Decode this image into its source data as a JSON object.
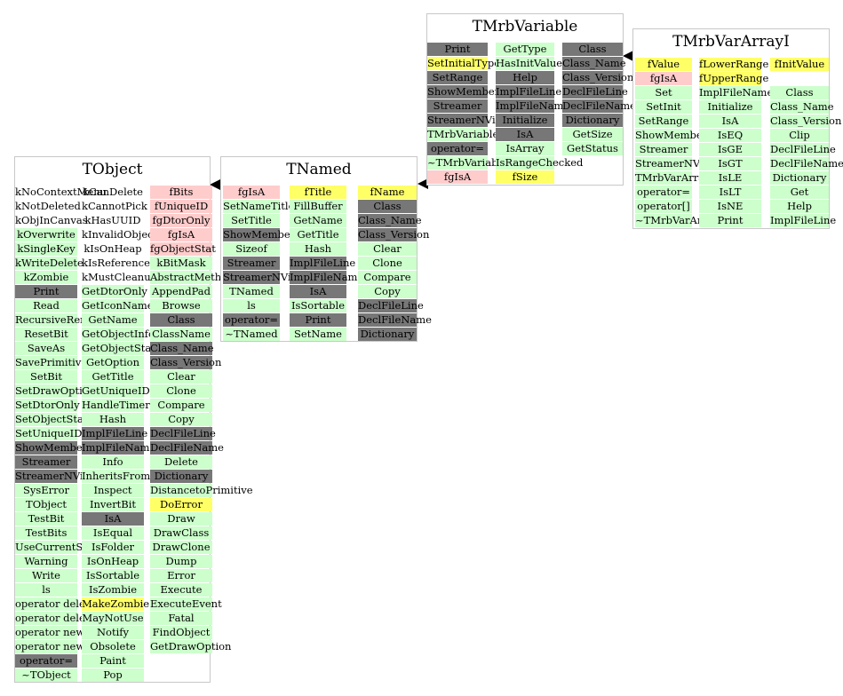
{
  "colors": {
    "green": "#ccffcc",
    "gray": "#777777",
    "pink": "#ffcccc",
    "yellow": "#ffff66"
  },
  "classes": {
    "TObject": {
      "title": "TObject",
      "columns": [
        [
          {
            "t": "kNoContextMenu",
            "c": "w"
          },
          {
            "t": "kNotDeleted",
            "c": "w"
          },
          {
            "t": "kObjInCanvas",
            "c": "w"
          },
          {
            "t": "kOverwrite",
            "c": "g"
          },
          {
            "t": "kSingleKey",
            "c": "g"
          },
          {
            "t": "kWriteDelete",
            "c": "g"
          },
          {
            "t": "kZombie",
            "c": "g"
          },
          {
            "t": "Print",
            "c": "d"
          },
          {
            "t": "Read",
            "c": "g"
          },
          {
            "t": "RecursiveRemove",
            "c": "g"
          },
          {
            "t": "ResetBit",
            "c": "g"
          },
          {
            "t": "SaveAs",
            "c": "g"
          },
          {
            "t": "SavePrimitive",
            "c": "g"
          },
          {
            "t": "SetBit",
            "c": "g"
          },
          {
            "t": "SetDrawOption",
            "c": "g"
          },
          {
            "t": "SetDtorOnly",
            "c": "g"
          },
          {
            "t": "SetObjectStat",
            "c": "g"
          },
          {
            "t": "SetUniqueID",
            "c": "g"
          },
          {
            "t": "ShowMembers",
            "c": "d"
          },
          {
            "t": "Streamer",
            "c": "d"
          },
          {
            "t": "StreamerNVirtual",
            "c": "d"
          },
          {
            "t": "SysError",
            "c": "g"
          },
          {
            "t": "TObject",
            "c": "g"
          },
          {
            "t": "TestBit",
            "c": "g"
          },
          {
            "t": "TestBits",
            "c": "g"
          },
          {
            "t": "UseCurrentStyle",
            "c": "g"
          },
          {
            "t": "Warning",
            "c": "g"
          },
          {
            "t": "Write",
            "c": "g"
          },
          {
            "t": "ls",
            "c": "g"
          },
          {
            "t": "operator delete",
            "c": "g"
          },
          {
            "t": "operator delete[]",
            "c": "g"
          },
          {
            "t": "operator new",
            "c": "g"
          },
          {
            "t": "operator new[]",
            "c": "g"
          },
          {
            "t": "operator=",
            "c": "d"
          },
          {
            "t": "~TObject",
            "c": "g"
          }
        ],
        [
          {
            "t": "kCanDelete",
            "c": "w"
          },
          {
            "t": "kCannotPick",
            "c": "w"
          },
          {
            "t": "kHasUUID",
            "c": "w"
          },
          {
            "t": "kInvalidObject",
            "c": "w"
          },
          {
            "t": "kIsOnHeap",
            "c": "w"
          },
          {
            "t": "kIsReferenced",
            "c": "w"
          },
          {
            "t": "kMustCleanup",
            "c": "w"
          },
          {
            "t": "GetDtorOnly",
            "c": "g"
          },
          {
            "t": "GetIconName",
            "c": "g"
          },
          {
            "t": "GetName",
            "c": "g"
          },
          {
            "t": "GetObjectInfo",
            "c": "g"
          },
          {
            "t": "GetObjectStat",
            "c": "g"
          },
          {
            "t": "GetOption",
            "c": "g"
          },
          {
            "t": "GetTitle",
            "c": "g"
          },
          {
            "t": "GetUniqueID",
            "c": "g"
          },
          {
            "t": "HandleTimer",
            "c": "g"
          },
          {
            "t": "Hash",
            "c": "g"
          },
          {
            "t": "ImplFileLine",
            "c": "d"
          },
          {
            "t": "ImplFileName",
            "c": "d"
          },
          {
            "t": "Info",
            "c": "g"
          },
          {
            "t": "InheritsFrom",
            "c": "g"
          },
          {
            "t": "Inspect",
            "c": "g"
          },
          {
            "t": "InvertBit",
            "c": "g"
          },
          {
            "t": "IsA",
            "c": "d"
          },
          {
            "t": "IsEqual",
            "c": "g"
          },
          {
            "t": "IsFolder",
            "c": "g"
          },
          {
            "t": "IsOnHeap",
            "c": "g"
          },
          {
            "t": "IsSortable",
            "c": "g"
          },
          {
            "t": "IsZombie",
            "c": "g"
          },
          {
            "t": "MakeZombie",
            "c": "y"
          },
          {
            "t": "MayNotUse",
            "c": "g"
          },
          {
            "t": "Notify",
            "c": "g"
          },
          {
            "t": "Obsolete",
            "c": "g"
          },
          {
            "t": "Paint",
            "c": "g"
          },
          {
            "t": "Pop",
            "c": "g"
          }
        ],
        [
          {
            "t": "fBits",
            "c": "p"
          },
          {
            "t": "fUniqueID",
            "c": "p"
          },
          {
            "t": "fgDtorOnly",
            "c": "p"
          },
          {
            "t": "fgIsA",
            "c": "p"
          },
          {
            "t": "fgObjectStat",
            "c": "p"
          },
          {
            "t": "kBitMask",
            "c": "g"
          },
          {
            "t": "AbstractMethod",
            "c": "g"
          },
          {
            "t": "AppendPad",
            "c": "g"
          },
          {
            "t": "Browse",
            "c": "g"
          },
          {
            "t": "Class",
            "c": "d"
          },
          {
            "t": "ClassName",
            "c": "g"
          },
          {
            "t": "Class_Name",
            "c": "d"
          },
          {
            "t": "Class_Version",
            "c": "d"
          },
          {
            "t": "Clear",
            "c": "g"
          },
          {
            "t": "Clone",
            "c": "g"
          },
          {
            "t": "Compare",
            "c": "g"
          },
          {
            "t": "Copy",
            "c": "g"
          },
          {
            "t": "DeclFileLine",
            "c": "d"
          },
          {
            "t": "DeclFileName",
            "c": "d"
          },
          {
            "t": "Delete",
            "c": "g"
          },
          {
            "t": "Dictionary",
            "c": "d"
          },
          {
            "t": "DistancetoPrimitive",
            "c": "g"
          },
          {
            "t": "DoError",
            "c": "y"
          },
          {
            "t": "Draw",
            "c": "g"
          },
          {
            "t": "DrawClass",
            "c": "g"
          },
          {
            "t": "DrawClone",
            "c": "g"
          },
          {
            "t": "Dump",
            "c": "g"
          },
          {
            "t": "Error",
            "c": "g"
          },
          {
            "t": "Execute",
            "c": "g"
          },
          {
            "t": "ExecuteEvent",
            "c": "g"
          },
          {
            "t": "Fatal",
            "c": "g"
          },
          {
            "t": "FindObject",
            "c": "g"
          },
          {
            "t": "GetDrawOption",
            "c": "g"
          }
        ]
      ]
    },
    "TNamed": {
      "title": "TNamed",
      "columns": [
        [
          {
            "t": "fgIsA",
            "c": "p"
          },
          {
            "t": "SetNameTitle",
            "c": "g"
          },
          {
            "t": "SetTitle",
            "c": "g"
          },
          {
            "t": "ShowMembers",
            "c": "d"
          },
          {
            "t": "Sizeof",
            "c": "g"
          },
          {
            "t": "Streamer",
            "c": "d"
          },
          {
            "t": "StreamerNVirtual",
            "c": "d"
          },
          {
            "t": "TNamed",
            "c": "g"
          },
          {
            "t": "ls",
            "c": "g"
          },
          {
            "t": "operator=",
            "c": "d"
          },
          {
            "t": "~TNamed",
            "c": "g"
          }
        ],
        [
          {
            "t": "fTitle",
            "c": "y"
          },
          {
            "t": "FillBuffer",
            "c": "g"
          },
          {
            "t": "GetName",
            "c": "g"
          },
          {
            "t": "GetTitle",
            "c": "g"
          },
          {
            "t": "Hash",
            "c": "g"
          },
          {
            "t": "ImplFileLine",
            "c": "d"
          },
          {
            "t": "ImplFileName",
            "c": "d"
          },
          {
            "t": "IsA",
            "c": "d"
          },
          {
            "t": "IsSortable",
            "c": "g"
          },
          {
            "t": "Print",
            "c": "d"
          },
          {
            "t": "SetName",
            "c": "g"
          }
        ],
        [
          {
            "t": "fName",
            "c": "y"
          },
          {
            "t": "Class",
            "c": "d"
          },
          {
            "t": "Class_Name",
            "c": "d"
          },
          {
            "t": "Class_Version",
            "c": "d"
          },
          {
            "t": "Clear",
            "c": "g"
          },
          {
            "t": "Clone",
            "c": "g"
          },
          {
            "t": "Compare",
            "c": "g"
          },
          {
            "t": "Copy",
            "c": "g"
          },
          {
            "t": "DeclFileLine",
            "c": "d"
          },
          {
            "t": "DeclFileName",
            "c": "d"
          },
          {
            "t": "Dictionary",
            "c": "d"
          }
        ]
      ]
    },
    "TMrbVariable": {
      "title": "TMrbVariable",
      "columns": [
        [
          {
            "t": "Print",
            "c": "d"
          },
          {
            "t": "SetInitialType",
            "c": "y"
          },
          {
            "t": "SetRange",
            "c": "d"
          },
          {
            "t": "ShowMembers",
            "c": "d"
          },
          {
            "t": "Streamer",
            "c": "d"
          },
          {
            "t": "StreamerNVirtual",
            "c": "d"
          },
          {
            "t": "TMrbVariable",
            "c": "g"
          },
          {
            "t": "operator=",
            "c": "d"
          },
          {
            "t": "~TMrbVariable",
            "c": "g"
          },
          {
            "t": "fgIsA",
            "c": "p"
          }
        ],
        [
          {
            "t": "GetType",
            "c": "g"
          },
          {
            "t": "HasInitValues",
            "c": "g"
          },
          {
            "t": "Help",
            "c": "d"
          },
          {
            "t": "ImplFileLine",
            "c": "d"
          },
          {
            "t": "ImplFileName",
            "c": "d"
          },
          {
            "t": "Initialize",
            "c": "d"
          },
          {
            "t": "IsA",
            "c": "d"
          },
          {
            "t": "IsArray",
            "c": "g"
          },
          {
            "t": "IsRangeChecked",
            "c": "g"
          },
          {
            "t": "fSize",
            "c": "y"
          }
        ],
        [
          {
            "t": "Class",
            "c": "d"
          },
          {
            "t": "Class_Name",
            "c": "d"
          },
          {
            "t": "Class_Version",
            "c": "d"
          },
          {
            "t": "DeclFileLine",
            "c": "d"
          },
          {
            "t": "DeclFileName",
            "c": "d"
          },
          {
            "t": "Dictionary",
            "c": "d"
          },
          {
            "t": "GetSize",
            "c": "g"
          },
          {
            "t": "GetStatus",
            "c": "g"
          }
        ]
      ]
    },
    "TMrbVarArrayI": {
      "title": "TMrbVarArrayI",
      "columns": [
        [
          {
            "t": "fValue",
            "c": "y"
          },
          {
            "t": "fgIsA",
            "c": "p"
          },
          {
            "t": "Set",
            "c": "g"
          },
          {
            "t": "SetInit",
            "c": "g"
          },
          {
            "t": "SetRange",
            "c": "g"
          },
          {
            "t": "ShowMembers",
            "c": "g"
          },
          {
            "t": "Streamer",
            "c": "g"
          },
          {
            "t": "StreamerNVirtual",
            "c": "g"
          },
          {
            "t": "TMrbVarArrayI",
            "c": "g"
          },
          {
            "t": "operator=",
            "c": "g"
          },
          {
            "t": "operator[]",
            "c": "g"
          },
          {
            "t": "~TMrbVarArrayI",
            "c": "g"
          }
        ],
        [
          {
            "t": "fLowerRange",
            "c": "y"
          },
          {
            "t": "fUpperRange",
            "c": "y"
          },
          {
            "t": "ImplFileName",
            "c": "g"
          },
          {
            "t": "Initialize",
            "c": "g"
          },
          {
            "t": "IsA",
            "c": "g"
          },
          {
            "t": "IsEQ",
            "c": "g"
          },
          {
            "t": "IsGE",
            "c": "g"
          },
          {
            "t": "IsGT",
            "c": "g"
          },
          {
            "t": "IsLE",
            "c": "g"
          },
          {
            "t": "IsLT",
            "c": "g"
          },
          {
            "t": "IsNE",
            "c": "g"
          },
          {
            "t": "Print",
            "c": "g"
          }
        ],
        [
          {
            "t": "fInitValue",
            "c": "y"
          },
          {
            "t": "",
            "c": "w"
          },
          {
            "t": "Class",
            "c": "g"
          },
          {
            "t": "Class_Name",
            "c": "g"
          },
          {
            "t": "Class_Version",
            "c": "g"
          },
          {
            "t": "Clip",
            "c": "g"
          },
          {
            "t": "DeclFileLine",
            "c": "g"
          },
          {
            "t": "DeclFileName",
            "c": "g"
          },
          {
            "t": "Dictionary",
            "c": "g"
          },
          {
            "t": "Get",
            "c": "g"
          },
          {
            "t": "Help",
            "c": "g"
          },
          {
            "t": "ImplFileLine",
            "c": "g"
          }
        ]
      ]
    }
  }
}
